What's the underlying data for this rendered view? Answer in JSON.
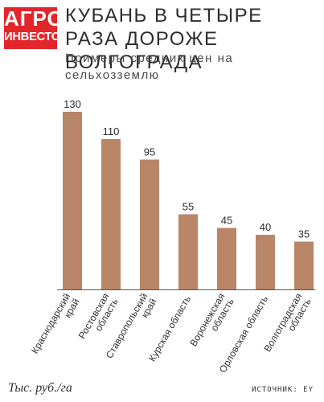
{
  "logo": {
    "line1": "АГРО",
    "line2": "ИНВЕСТОР"
  },
  "header": {
    "title": "КУБАНЬ В ЧЕТЫРЕ РАЗА ДОРОЖЕ ВОЛГОГРАДА",
    "subtitle": "Примеры средних цен на сельхозземлю"
  },
  "footer": {
    "unit_label": "Тыс. руб./га",
    "source_label": "ИСТОЧНИК: EY"
  },
  "chart_data": {
    "type": "bar",
    "categories": [
      [
        "Краснодарский",
        "край"
      ],
      [
        "Ростовская",
        "область"
      ],
      [
        "Ставропольский",
        "край"
      ],
      [
        "Курская область"
      ],
      [
        "Воронежская",
        "область"
      ],
      [
        "Орловская область"
      ],
      [
        "Волгоградская",
        "область"
      ]
    ],
    "values": [
      130,
      110,
      95,
      55,
      45,
      40,
      35
    ],
    "data_labels": [
      "130",
      "110",
      "95",
      "55",
      "45",
      "40",
      "35"
    ],
    "bar_color": "#b98567",
    "axis_color": "#555555",
    "ylim": [
      0,
      130
    ],
    "grid": false,
    "legend": "none"
  }
}
